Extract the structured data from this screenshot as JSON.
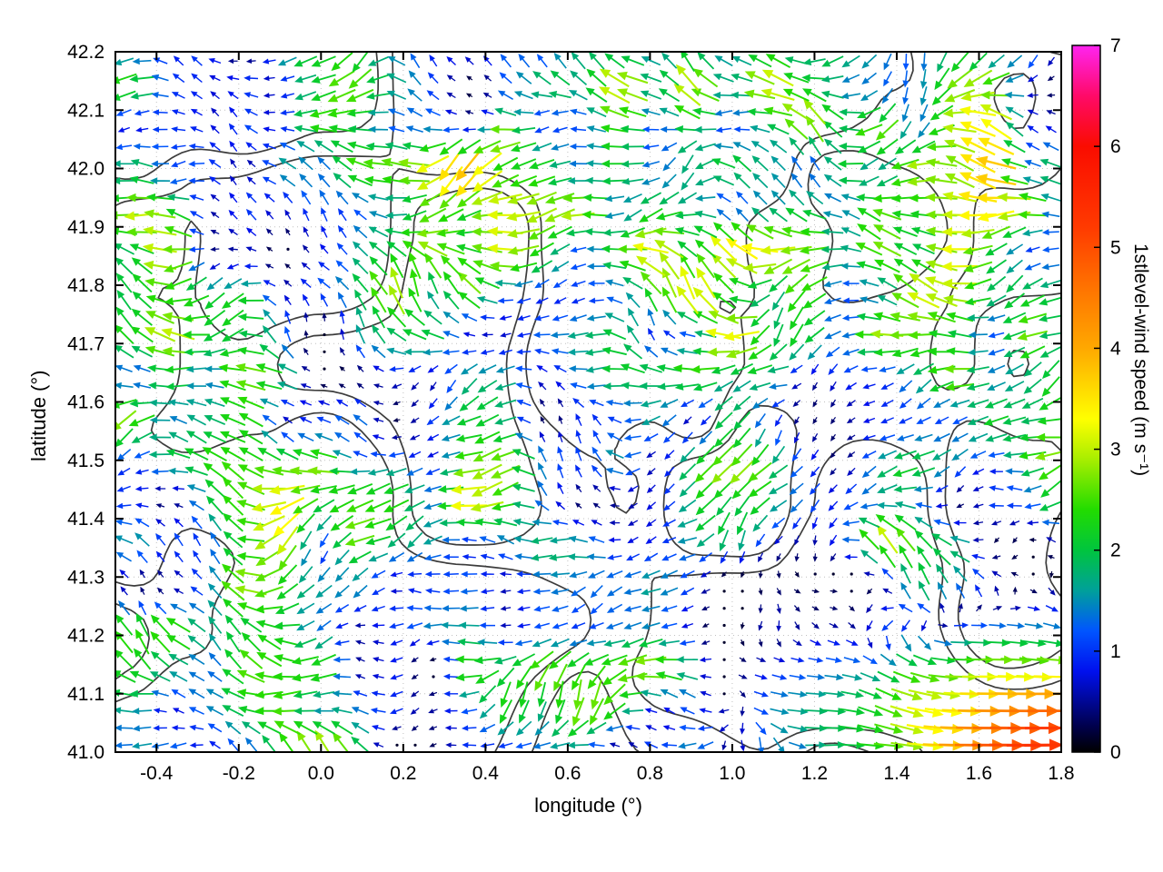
{
  "chart_data": {
    "type": "quiver",
    "title": "",
    "xlabel": "longitude (°)",
    "ylabel": "latitude (°)",
    "xlim": [
      -0.5,
      1.8
    ],
    "ylim": [
      41.0,
      42.2
    ],
    "xticks": [
      "-0.4",
      "-0.2",
      "0.0",
      "0.2",
      "0.4",
      "0.6",
      "0.8",
      "1.0",
      "1.2",
      "1.4",
      "1.6",
      "1.8"
    ],
    "yticks": [
      "41.0",
      "41.1",
      "41.2",
      "41.3",
      "41.4",
      "41.5",
      "41.6",
      "41.7",
      "41.8",
      "41.9",
      "42.0",
      "42.1",
      "42.2"
    ],
    "grid": "dotted",
    "grid_color": "#c0c0c0",
    "background": "#ffffff",
    "border_color": "#000000",
    "colorbar": {
      "label": "1stlevel-wind speed (m s⁻¹)",
      "min": 0,
      "max": 7,
      "ticks": [
        0,
        1,
        2,
        3,
        4,
        5,
        6,
        7
      ],
      "colormap": [
        {
          "v": 0.0,
          "c": "#000000"
        },
        {
          "v": 0.25,
          "c": "#00004a"
        },
        {
          "v": 0.8,
          "c": "#0010ee"
        },
        {
          "v": 1.2,
          "c": "#0055ff"
        },
        {
          "v": 1.6,
          "c": "#00a09a"
        },
        {
          "v": 2.0,
          "c": "#00c53e"
        },
        {
          "v": 2.4,
          "c": "#22dc00"
        },
        {
          "v": 2.9,
          "c": "#a8ee00"
        },
        {
          "v": 3.3,
          "c": "#ffff00"
        },
        {
          "v": 4.0,
          "c": "#ffa800"
        },
        {
          "v": 4.6,
          "c": "#ff7300"
        },
        {
          "v": 5.2,
          "c": "#ff3a00"
        },
        {
          "v": 6.0,
          "c": "#fa0c00"
        },
        {
          "v": 6.5,
          "c": "#ff0a68"
        },
        {
          "v": 7.0,
          "c": "#ff24f0"
        }
      ]
    },
    "field": {
      "description": "First-model-level wind vectors on a regular lon/lat grid, colored and scaled by speed. Flow is predominantly weak westward (0-3 m/s) with many near-calm cells (dark dots), scattered green/yellow westward patches, and a strong eastward jet of 4-5 m/s in the southeast corner (lon 1.2-1.8, lat 41.0-41.2).",
      "grid": {
        "lon_start": -0.478,
        "lon_step": 0.0442,
        "lon_n": 52,
        "lat_start": 41.012,
        "lat_step": 0.0293,
        "lat_n": 41
      },
      "base_direction_deg": 180,
      "speed_range_ms": [
        0,
        5.3
      ],
      "jet": {
        "center_lon": 1.95,
        "center_lat": 40.98,
        "sigma_lon": 0.55,
        "sigma_lat": 0.16,
        "u_ms": 6.0
      },
      "noise": {
        "seed": 7,
        "speed_scales": [
          [
            5,
            7
          ],
          [
            11,
            14
          ]
        ],
        "speed_weights": [
          0.62,
          0.38
        ],
        "speed_exponent": 1.7,
        "speed_amp": 4.6,
        "dir_scales": [
          [
            3.5,
            4.5
          ],
          [
            9,
            11
          ]
        ],
        "dir_spread_rad": [
          2.4,
          1.2
        ]
      }
    },
    "contours": {
      "color": "#3c3c3c",
      "width": 1.7,
      "levels": [
        0.52,
        0.64
      ],
      "noise": {
        "seed": 11,
        "scale": [
          3.0,
          4.2
        ],
        "octave2_amp": 0.3,
        "octave2_scale": [
          6.5,
          9.0
        ]
      }
    }
  }
}
